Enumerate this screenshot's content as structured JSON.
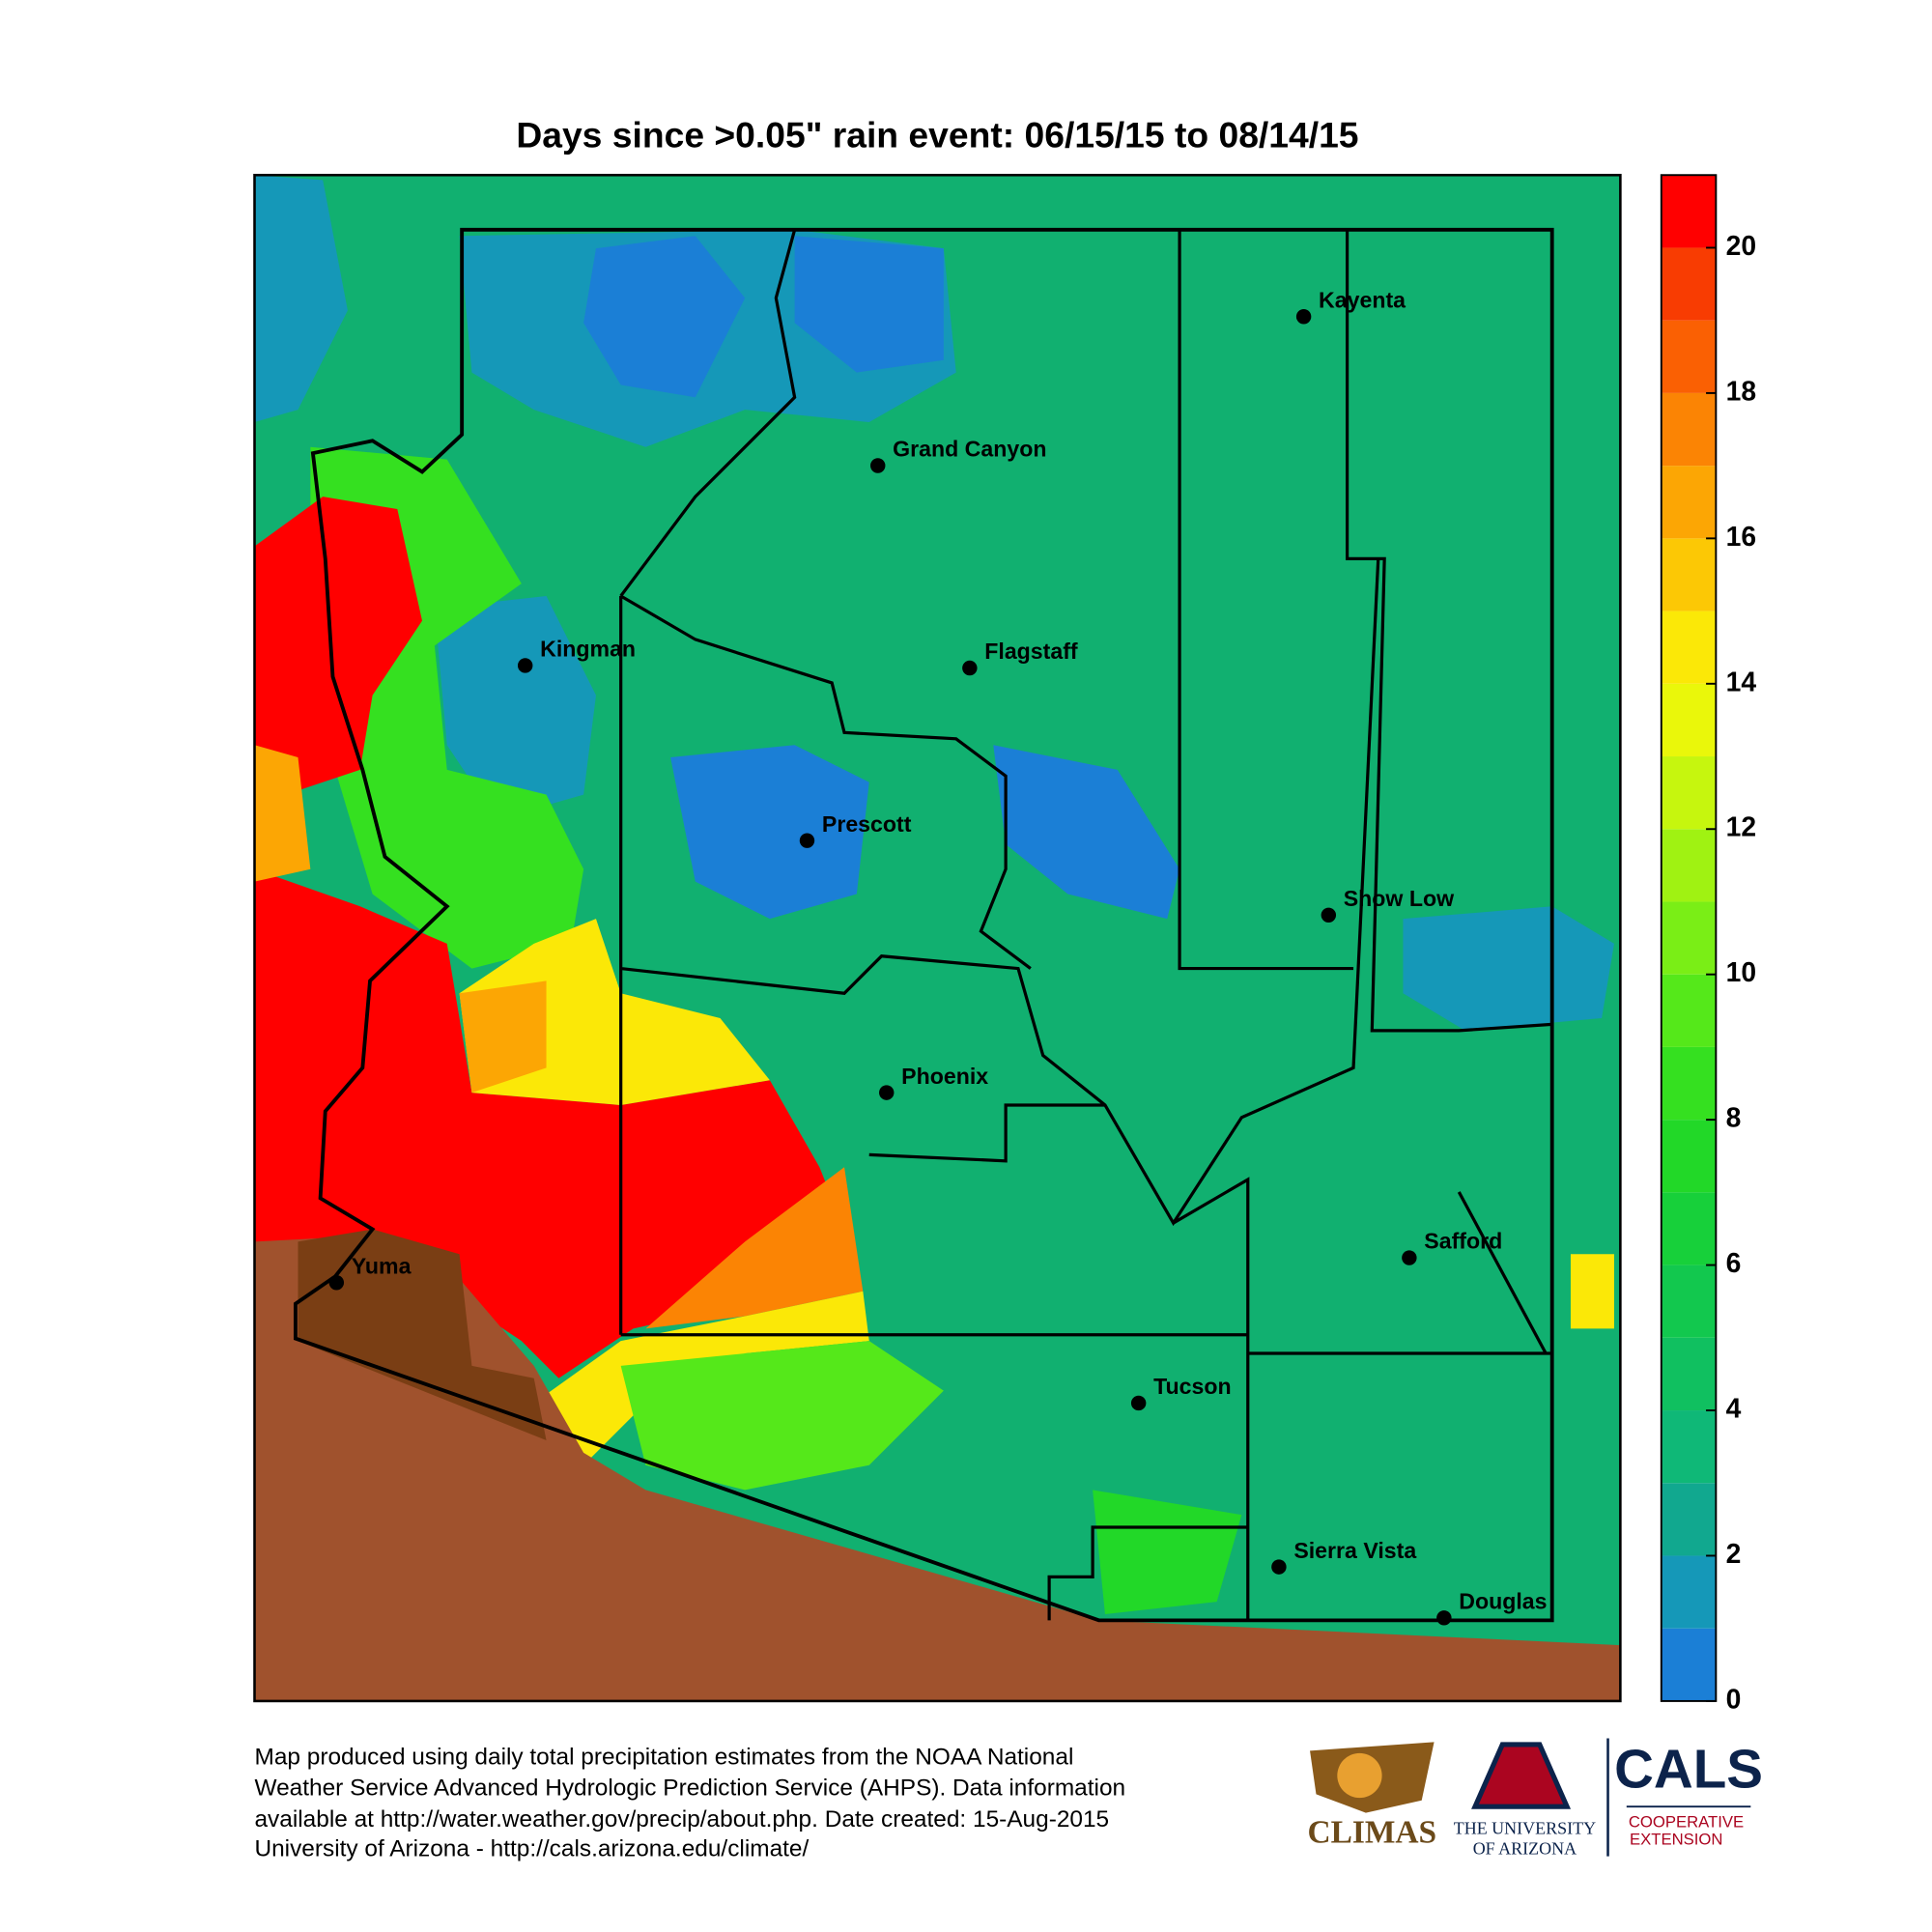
{
  "chart_data": {
    "type": "map",
    "title": "Days since >0.05\" rain event: 06/15/15 to 08/14/15",
    "colorbar": {
      "lim": [
        0,
        21
      ],
      "ticks": [
        0,
        2,
        4,
        6,
        8,
        10,
        12,
        14,
        16,
        18,
        20
      ],
      "colors": [
        "#1b7fd6",
        "#1598b8",
        "#11a88f",
        "#0fb877",
        "#10c060",
        "#12c84e",
        "#17d03a",
        "#22d828",
        "#35e020",
        "#55e81a",
        "#7aee16",
        "#a0f212",
        "#c6f60e",
        "#eaf70a",
        "#fbe807",
        "#fcc805",
        "#fca604",
        "#fb8404",
        "#fa6003",
        "#f83c02",
        "#ff0000"
      ]
    },
    "cities": [
      "Kayenta",
      "Grand Canyon",
      "Kingman",
      "Flagstaff",
      "Prescott",
      "Show Low",
      "Phoenix",
      "Safford",
      "Yuma",
      "Tucson",
      "Sierra Vista",
      "Douglas"
    ]
  },
  "footer": [
    "Map produced using daily total precipitation estimates from the NOAA National",
    "Weather Service Advanced Hydrologic Prediction Service (AHPS). Data information",
    "available at http://water.weather.gov/precip/about.php. Date created: 15-Aug-2015",
    "University of Arizona - http://cals.arizona.edu/climate/"
  ],
  "logos": {
    "climas": "CLIMAS",
    "ua": [
      "THE UNIVERSITY",
      "OF ARIZONA"
    ],
    "cals": "CALS",
    "cals_sub": [
      "COOPERATIVE",
      "EXTENSION"
    ]
  }
}
